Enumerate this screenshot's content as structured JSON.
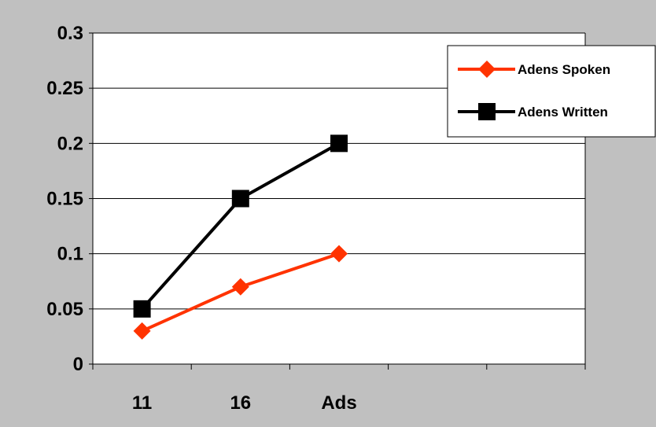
{
  "chart_data": {
    "type": "line",
    "categories": [
      "11",
      "16",
      "Ads",
      "",
      ""
    ],
    "series": [
      {
        "name": "Adens Spoken",
        "values": [
          0.03,
          0.07,
          0.1,
          null,
          null
        ],
        "color": "#ff3300",
        "marker": "diamond"
      },
      {
        "name": "Adens Written",
        "values": [
          0.05,
          0.15,
          0.2,
          null,
          null
        ],
        "color": "#000000",
        "marker": "square"
      }
    ],
    "y_ticks": [
      "0",
      "0.05",
      "0.1",
      "0.15",
      "0.2",
      "0.25",
      "0.3"
    ],
    "ylim": [
      0,
      0.3
    ],
    "grid": true,
    "legend_position": "top-right",
    "colors": {
      "background": "#c0c0c0",
      "plot_area": "#ffffff",
      "gridline": "#000000"
    }
  }
}
